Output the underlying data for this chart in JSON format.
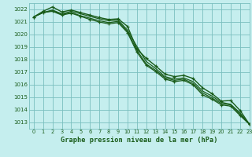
{
  "xlabel": "Graphe pression niveau de la mer (hPa)",
  "background_color": "#c5eeee",
  "grid_color": "#7abfbf",
  "line_color": "#1a5c1a",
  "text_color": "#1a5c1a",
  "xlim": [
    -0.5,
    23
  ],
  "ylim": [
    1012.5,
    1022.5
  ],
  "yticks": [
    1013,
    1014,
    1015,
    1016,
    1017,
    1018,
    1019,
    1020,
    1021,
    1022
  ],
  "xticks": [
    0,
    1,
    2,
    3,
    4,
    5,
    6,
    7,
    8,
    9,
    10,
    11,
    12,
    13,
    14,
    15,
    16,
    17,
    18,
    19,
    20,
    21,
    22,
    23
  ],
  "series": [
    {
      "y": [
        1021.4,
        1021.85,
        1022.2,
        1021.8,
        1021.95,
        1021.75,
        1021.55,
        1021.35,
        1021.2,
        1021.25,
        1020.65,
        1018.85,
        1018.1,
        1017.5,
        1016.85,
        1016.65,
        1016.75,
        1016.5,
        1015.75,
        1015.3,
        1014.7,
        1014.75,
        1013.95,
        1012.85
      ],
      "marker": true,
      "linewidth": 1.0
    },
    {
      "y": [
        1021.4,
        1021.75,
        1021.95,
        1021.65,
        1021.85,
        1021.65,
        1021.45,
        1021.25,
        1021.1,
        1021.15,
        1020.35,
        1019.05,
        1017.85,
        1017.3,
        1016.65,
        1016.45,
        1016.55,
        1016.25,
        1015.5,
        1015.1,
        1014.6,
        1014.45,
        1013.75,
        1012.85
      ],
      "marker": false,
      "linewidth": 0.9
    },
    {
      "y": [
        1021.4,
        1021.75,
        1021.9,
        1021.6,
        1021.75,
        1021.5,
        1021.3,
        1021.1,
        1020.95,
        1021.05,
        1020.25,
        1018.75,
        1017.65,
        1017.15,
        1016.55,
        1016.35,
        1016.45,
        1016.1,
        1015.35,
        1014.95,
        1014.5,
        1014.4,
        1013.65,
        1012.85
      ],
      "marker": false,
      "linewidth": 0.9
    },
    {
      "y": [
        1021.4,
        1021.75,
        1021.85,
        1021.55,
        1021.7,
        1021.45,
        1021.2,
        1021.0,
        1020.85,
        1020.95,
        1020.15,
        1018.6,
        1017.55,
        1017.05,
        1016.45,
        1016.25,
        1016.35,
        1016.0,
        1015.2,
        1014.85,
        1014.4,
        1014.3,
        1013.55,
        1012.85
      ],
      "marker": true,
      "linewidth": 0.9
    }
  ]
}
